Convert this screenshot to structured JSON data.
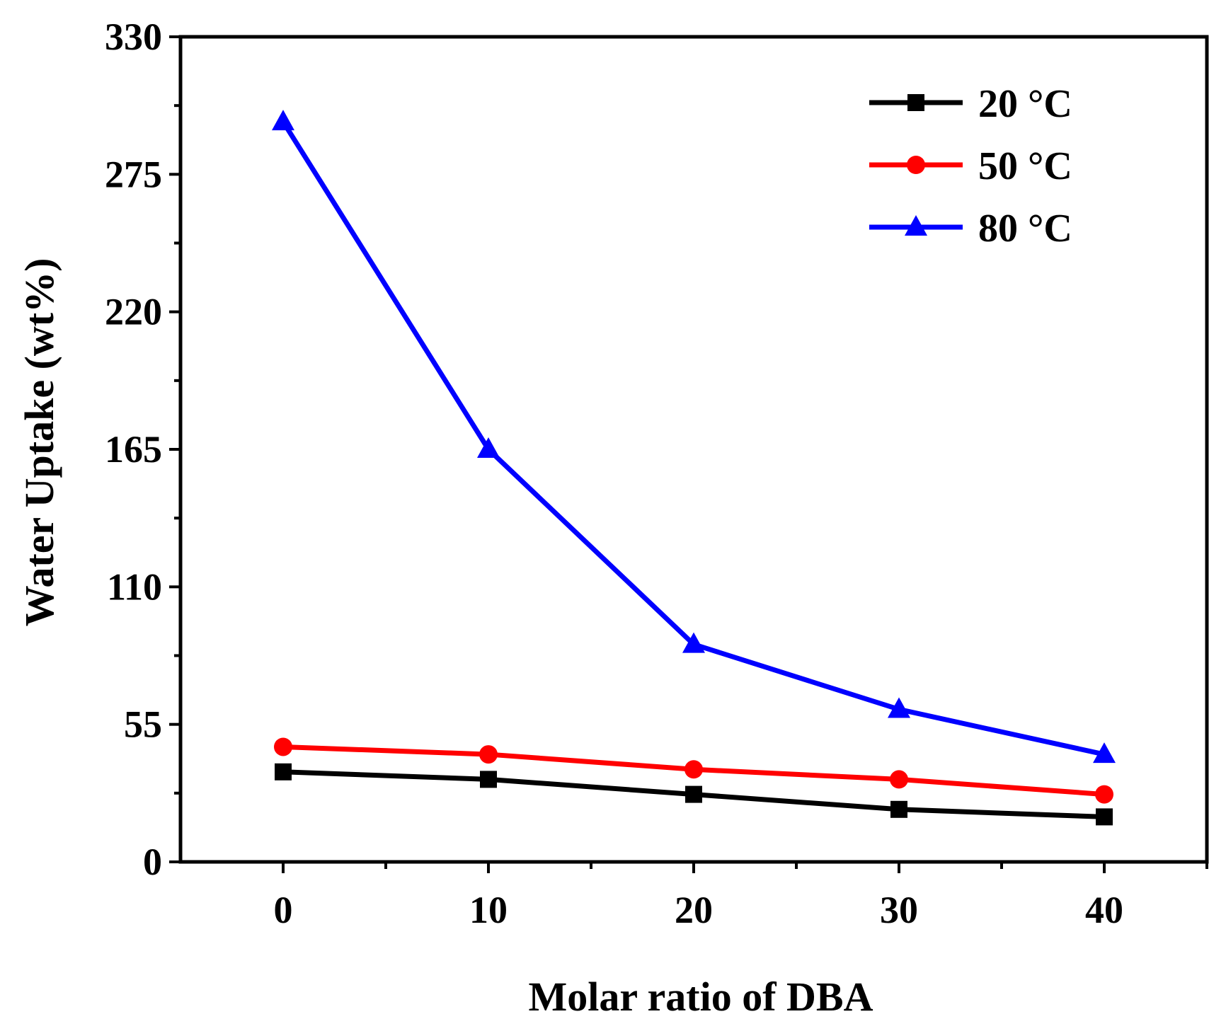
{
  "chart_data": {
    "type": "line",
    "title": "",
    "xlabel": "Molar ratio of DBA",
    "ylabel": "Water Uptake (wt%)",
    "xlim": [
      -5,
      45
    ],
    "ylim": [
      0,
      330
    ],
    "xticks": [
      0,
      10,
      20,
      30,
      40
    ],
    "yticks": [
      0,
      55,
      110,
      165,
      220,
      275,
      330
    ],
    "x_minor_step": 5,
    "y_minor_step": 27.5,
    "legend_position": "top-right",
    "series": [
      {
        "name": "20 °C",
        "marker": "square",
        "color": "#000000",
        "x": [
          0,
          10,
          20,
          30,
          40
        ],
        "values": [
          36,
          33,
          27,
          21,
          18
        ]
      },
      {
        "name": "50 °C",
        "marker": "circle",
        "color": "#ff0000",
        "x": [
          0,
          10,
          20,
          30,
          40
        ],
        "values": [
          46,
          43,
          37,
          33,
          27
        ]
      },
      {
        "name": "80 °C",
        "marker": "triangle",
        "color": "#0000ff",
        "x": [
          0,
          10,
          20,
          30,
          40
        ],
        "values": [
          296,
          165,
          87,
          61,
          43
        ]
      }
    ]
  }
}
